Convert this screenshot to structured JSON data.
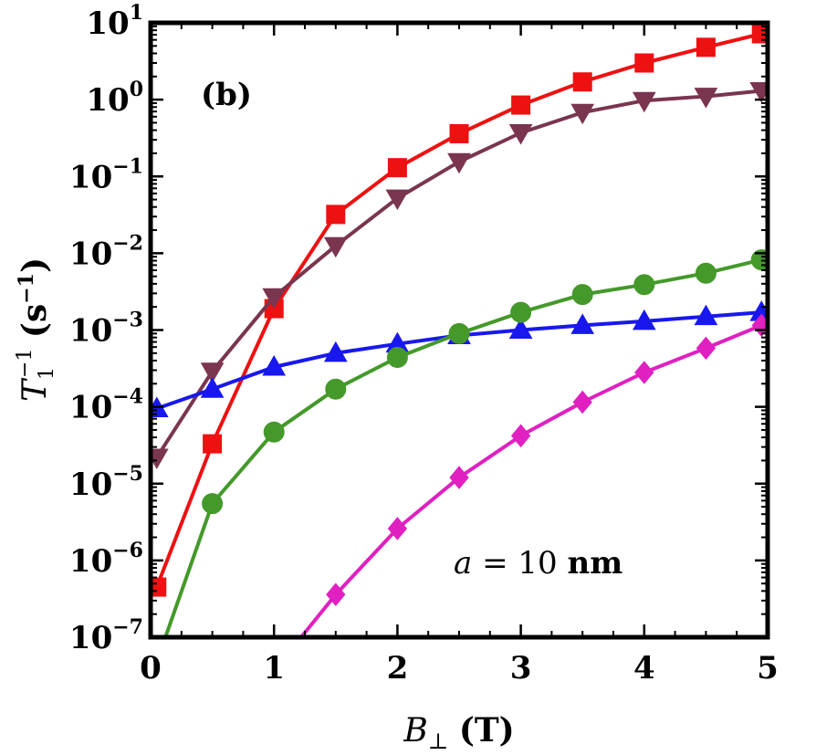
{
  "chart_data": {
    "type": "line",
    "panel_label": "(b)",
    "annotation": {
      "var": "a",
      "rest": " = 10 ",
      "unit": "nm"
    },
    "xlabel": {
      "sym": "B",
      "sub": "⊥",
      "unit": "(T)"
    },
    "ylabel": {
      "sym": "T",
      "sub": "1",
      "sup": "−1",
      "unit_pre": "(s",
      "unit_sup": "−1",
      "unit_post": ")"
    },
    "xlim": [
      0,
      5
    ],
    "ylim_log10": [
      -7,
      1
    ],
    "yscale": "log",
    "x_ticks": [
      0,
      1,
      2,
      3,
      4,
      5
    ],
    "x_tick_labels": [
      "0",
      "1",
      "2",
      "3",
      "4",
      "5"
    ],
    "y_tick_exponents": [
      "−7",
      "−6",
      "−5",
      "−4",
      "−3",
      "−2",
      "−1",
      "0",
      "1"
    ],
    "y_tick_base": "10",
    "grid": false,
    "series": [
      {
        "color": "#ee1111",
        "marker": "square",
        "x": [
          0.05,
          0.5,
          1.0,
          1.5,
          2.0,
          2.5,
          3.0,
          3.5,
          4.0,
          4.5,
          4.95
        ],
        "y": [
          4.5e-07,
          3.3e-05,
          0.0019,
          0.032,
          0.13,
          0.36,
          0.85,
          1.7,
          3.0,
          4.8,
          7.2
        ]
      },
      {
        "color": "#7a3550",
        "marker": "triangle-down",
        "x": [
          0.05,
          0.5,
          1.0,
          1.5,
          2.0,
          2.5,
          3.0,
          3.5,
          4.0,
          4.5,
          4.95
        ],
        "y": [
          2.2e-05,
          0.00029,
          0.0027,
          0.0125,
          0.052,
          0.155,
          0.37,
          0.68,
          0.97,
          1.1,
          1.3
        ]
      },
      {
        "color": "#1818ee",
        "marker": "triangle-up",
        "x": [
          0.05,
          0.5,
          1.0,
          1.5,
          2.0,
          2.5,
          3.0,
          3.5,
          4.0,
          4.5,
          4.95
        ],
        "y": [
          9.5e-05,
          0.00017,
          0.00033,
          0.0005,
          0.00066,
          0.00085,
          0.001,
          0.00115,
          0.0013,
          0.0015,
          0.0017
        ]
      },
      {
        "color": "#44992a",
        "marker": "circle",
        "x": [
          0.12,
          0.5,
          1.0,
          1.5,
          2.0,
          2.5,
          3.0,
          3.5,
          4.0,
          4.5,
          4.95
        ],
        "y": [
          1e-07,
          5.5e-06,
          4.7e-05,
          0.00017,
          0.00044,
          0.0009,
          0.0017,
          0.0029,
          0.0039,
          0.0055,
          0.0082
        ]
      },
      {
        "color": "#e020c0",
        "marker": "diamond",
        "x": [
          1.22,
          1.5,
          2.0,
          2.5,
          3.0,
          3.5,
          4.0,
          4.5,
          4.95
        ],
        "y": [
          1e-07,
          3.6e-07,
          2.6e-06,
          1.2e-05,
          4.2e-05,
          0.000115,
          0.00028,
          0.00058,
          0.00115
        ]
      }
    ]
  }
}
